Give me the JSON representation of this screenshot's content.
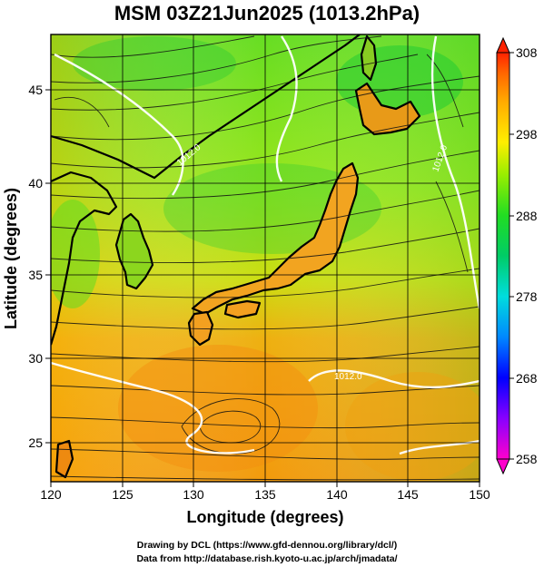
{
  "title": "MSM 03Z21Jun2025 (1013.2hPa)",
  "xaxis": {
    "label": "Longitude (degrees)",
    "ticks": [
      "120",
      "125",
      "130",
      "135",
      "140",
      "145",
      "150"
    ],
    "range": [
      120,
      150
    ]
  },
  "yaxis": {
    "label": "Latitude  (degrees)",
    "ticks": [
      "25",
      "30",
      "35",
      "40",
      "45"
    ],
    "range": [
      22.4,
      47.6
    ]
  },
  "colorbar": {
    "ticks": [
      "258",
      "268",
      "278",
      "288",
      "298",
      "308"
    ],
    "range": [
      258,
      308
    ],
    "colors": [
      "#ff00cc",
      "#8800ff",
      "#0000ff",
      "#0088ff",
      "#00dddd",
      "#00cc66",
      "#22dd22",
      "#99ee00",
      "#ffee00",
      "#ffaa00",
      "#ff6600",
      "#ff2200"
    ]
  },
  "contour_labels": [
    "1012.0",
    "1012.0",
    "1012.0"
  ],
  "footer": {
    "line1": "Drawing by DCL (https://www.gfd-dennou.org/library/dcl/)",
    "line2": "Data from http://database.rish.kyoto-u.ac.jp/arch/jmadata/"
  }
}
